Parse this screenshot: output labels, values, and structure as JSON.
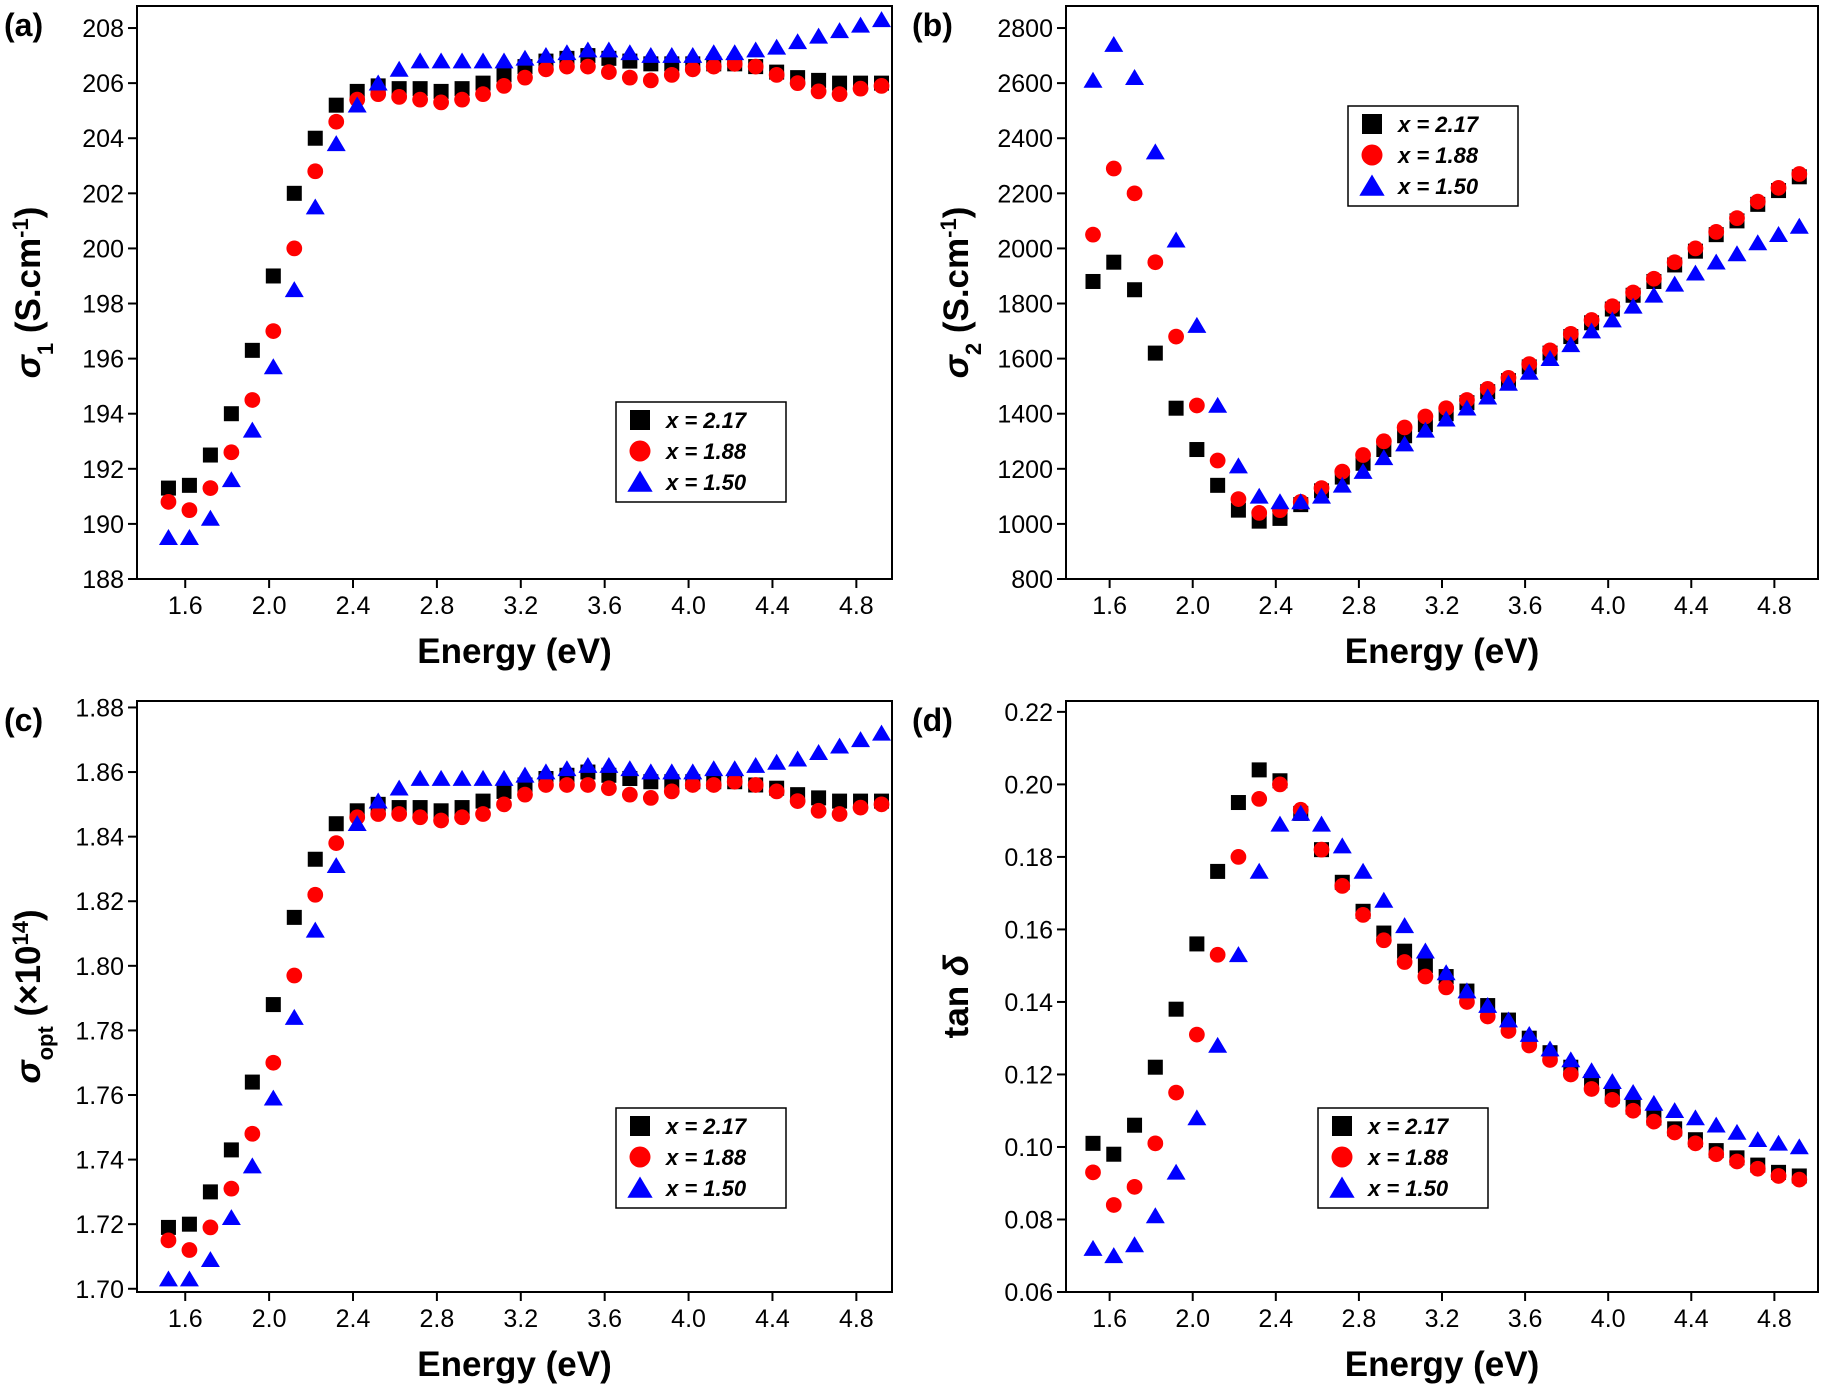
{
  "chart_data": [
    {
      "type": "scatter",
      "panel_label": "(a)",
      "xlabel": "Energy (eV)",
      "ylabel": [
        {
          "text": "σ",
          "kind": "italic"
        },
        {
          "text": "1",
          "kind": "sub"
        },
        {
          "text": " (S.cm",
          "kind": "normal"
        },
        {
          "text": "-1",
          "kind": "sup"
        },
        {
          "text": ")",
          "kind": "normal"
        }
      ],
      "x": [
        1.52,
        1.62,
        1.72,
        1.82,
        1.92,
        2.02,
        2.12,
        2.22,
        2.32,
        2.42,
        2.52,
        2.62,
        2.72,
        2.82,
        2.92,
        3.02,
        3.12,
        3.22,
        3.32,
        3.42,
        3.52,
        3.62,
        3.72,
        3.82,
        3.92,
        4.02,
        4.12,
        4.22,
        4.32,
        4.42,
        4.52,
        4.62,
        4.72,
        4.82,
        4.92
      ],
      "xlim": [
        1.37,
        4.97
      ],
      "ylim": [
        188,
        208.8
      ],
      "xticks": [
        1.6,
        {
          "value": 2,
          "label": "2.0"
        },
        2.4,
        2.8,
        3.2,
        3.6,
        {
          "value": 4,
          "label": "4.0"
        },
        4.4,
        4.8
      ],
      "yticks": [
        188,
        190,
        192,
        194,
        196,
        198,
        200,
        202,
        204,
        206,
        208
      ],
      "legend": "lower right",
      "series": [
        {
          "name": "x = 2.17",
          "color": "#000000",
          "marker": "square",
          "values": [
            191.3,
            191.4,
            192.5,
            194.0,
            196.3,
            199.0,
            202.0,
            204.0,
            205.2,
            205.7,
            205.9,
            205.8,
            205.8,
            205.7,
            205.8,
            206.0,
            206.3,
            206.6,
            206.8,
            206.9,
            207.0,
            206.9,
            206.8,
            206.7,
            206.7,
            206.7,
            206.7,
            206.7,
            206.6,
            206.4,
            206.2,
            206.1,
            206.0,
            206.0,
            206.0
          ]
        },
        {
          "name": "x = 1.88",
          "color": "#ff0000",
          "marker": "circle",
          "values": [
            190.8,
            190.5,
            191.3,
            192.6,
            194.5,
            197.0,
            200.0,
            202.8,
            204.6,
            205.4,
            205.6,
            205.5,
            205.4,
            205.3,
            205.4,
            205.6,
            205.9,
            206.2,
            206.5,
            206.6,
            206.6,
            206.4,
            206.2,
            206.1,
            206.3,
            206.5,
            206.6,
            206.7,
            206.6,
            206.3,
            206.0,
            205.7,
            205.6,
            205.8,
            205.9
          ]
        },
        {
          "name": "x = 1.50",
          "color": "#0000ff",
          "marker": "triangle",
          "values": [
            189.5,
            189.5,
            190.2,
            191.6,
            193.4,
            195.7,
            198.5,
            201.5,
            203.8,
            205.2,
            206.0,
            206.5,
            206.8,
            206.8,
            206.8,
            206.8,
            206.8,
            206.9,
            207.0,
            207.1,
            207.2,
            207.2,
            207.1,
            207.0,
            207.0,
            207.0,
            207.1,
            207.1,
            207.2,
            207.3,
            207.5,
            207.7,
            207.9,
            208.1,
            208.3
          ]
        }
      ]
    },
    {
      "type": "scatter",
      "panel_label": "(b)",
      "xlabel": "Energy (eV)",
      "ylabel": [
        {
          "text": "σ",
          "kind": "italic"
        },
        {
          "text": "2",
          "kind": "sub"
        },
        {
          "text": " (S.cm",
          "kind": "normal"
        },
        {
          "text": "-1",
          "kind": "sup"
        },
        {
          "text": ")",
          "kind": "normal"
        }
      ],
      "x": [
        1.52,
        1.62,
        1.72,
        1.82,
        1.92,
        2.02,
        2.12,
        2.22,
        2.32,
        2.42,
        2.52,
        2.62,
        2.72,
        2.82,
        2.92,
        3.02,
        3.12,
        3.22,
        3.32,
        3.42,
        3.52,
        3.62,
        3.72,
        3.82,
        3.92,
        4.02,
        4.12,
        4.22,
        4.32,
        4.42,
        4.52,
        4.62,
        4.72,
        4.82,
        4.92
      ],
      "xlim": [
        1.39,
        5.01
      ],
      "ylim": [
        800,
        2880
      ],
      "xticks": [
        1.6,
        {
          "value": 2,
          "label": "2.0"
        },
        2.4,
        2.8,
        3.2,
        3.6,
        {
          "value": 4,
          "label": "4.0"
        },
        4.4,
        4.8
      ],
      "yticks": [
        800,
        1000,
        1200,
        1400,
        1600,
        1800,
        2000,
        2200,
        2400,
        2600,
        2800
      ],
      "legend": "upper right",
      "series": [
        {
          "name": "x = 2.17",
          "color": "#000000",
          "marker": "square",
          "values": [
            1880,
            1950,
            1850,
            1620,
            1420,
            1270,
            1140,
            1050,
            1010,
            1020,
            1070,
            1120,
            1170,
            1220,
            1270,
            1320,
            1360,
            1400,
            1440,
            1480,
            1520,
            1570,
            1620,
            1680,
            1730,
            1780,
            1830,
            1880,
            1940,
            1990,
            2050,
            2100,
            2160,
            2210,
            2260
          ]
        },
        {
          "name": "x = 1.88",
          "color": "#ff0000",
          "marker": "circle",
          "values": [
            2050,
            2290,
            2200,
            1950,
            1680,
            1430,
            1230,
            1090,
            1040,
            1050,
            1080,
            1130,
            1190,
            1250,
            1300,
            1350,
            1390,
            1420,
            1450,
            1490,
            1530,
            1580,
            1630,
            1690,
            1740,
            1790,
            1840,
            1890,
            1950,
            2000,
            2060,
            2110,
            2170,
            2220,
            2270
          ]
        },
        {
          "name": "x = 1.50",
          "color": "#0000ff",
          "marker": "triangle",
          "values": [
            2610,
            2740,
            2620,
            2350,
            2030,
            1720,
            1430,
            1210,
            1100,
            1080,
            1080,
            1100,
            1140,
            1190,
            1240,
            1290,
            1340,
            1380,
            1420,
            1460,
            1510,
            1550,
            1600,
            1650,
            1700,
            1740,
            1790,
            1830,
            1870,
            1910,
            1950,
            1980,
            2020,
            2050,
            2080
          ]
        }
      ]
    },
    {
      "type": "scatter",
      "panel_label": "(c)",
      "xlabel": "Energy (eV)",
      "ylabel": [
        {
          "text": "σ",
          "kind": "italic"
        },
        {
          "text": "opt",
          "kind": "sub"
        },
        {
          "text": " (×10",
          "kind": "normal"
        },
        {
          "text": "14",
          "kind": "sup"
        },
        {
          "text": ")",
          "kind": "normal"
        }
      ],
      "x": [
        1.52,
        1.62,
        1.72,
        1.82,
        1.92,
        2.02,
        2.12,
        2.22,
        2.32,
        2.42,
        2.52,
        2.62,
        2.72,
        2.82,
        2.92,
        3.02,
        3.12,
        3.22,
        3.32,
        3.42,
        3.52,
        3.62,
        3.72,
        3.82,
        3.92,
        4.02,
        4.12,
        4.22,
        4.32,
        4.42,
        4.52,
        4.62,
        4.72,
        4.82,
        4.92
      ],
      "xlim": [
        1.37,
        4.97
      ],
      "ylim": [
        1.699,
        1.882
      ],
      "xticks": [
        1.6,
        {
          "value": 2,
          "label": "2.0"
        },
        2.4,
        2.8,
        3.2,
        3.6,
        {
          "value": 4,
          "label": "4.0"
        },
        4.4,
        4.8
      ],
      "yticks": [
        {
          "value": 1.7,
          "label": "1.70"
        },
        1.72,
        1.74,
        1.76,
        1.78,
        {
          "value": 1.8,
          "label": "1.80"
        },
        1.82,
        1.84,
        1.86,
        1.88
      ],
      "legend": "lower right",
      "series": [
        {
          "name": "x = 2.17",
          "color": "#000000",
          "marker": "square",
          "values": [
            1.719,
            1.72,
            1.73,
            1.743,
            1.764,
            1.788,
            1.815,
            1.833,
            1.844,
            1.848,
            1.85,
            1.849,
            1.849,
            1.848,
            1.849,
            1.851,
            1.854,
            1.856,
            1.858,
            1.859,
            1.86,
            1.859,
            1.858,
            1.857,
            1.857,
            1.857,
            1.857,
            1.857,
            1.856,
            1.855,
            1.853,
            1.852,
            1.851,
            1.851,
            1.851
          ]
        },
        {
          "name": "x = 1.88",
          "color": "#ff0000",
          "marker": "circle",
          "values": [
            1.715,
            1.712,
            1.719,
            1.731,
            1.748,
            1.77,
            1.797,
            1.822,
            1.838,
            1.846,
            1.847,
            1.847,
            1.846,
            1.845,
            1.846,
            1.847,
            1.85,
            1.853,
            1.856,
            1.856,
            1.856,
            1.855,
            1.853,
            1.852,
            1.854,
            1.856,
            1.856,
            1.857,
            1.856,
            1.854,
            1.851,
            1.848,
            1.847,
            1.849,
            1.85
          ]
        },
        {
          "name": "x = 1.50",
          "color": "#0000ff",
          "marker": "triangle",
          "values": [
            1.703,
            1.703,
            1.709,
            1.722,
            1.738,
            1.759,
            1.784,
            1.811,
            1.831,
            1.844,
            1.851,
            1.855,
            1.858,
            1.858,
            1.858,
            1.858,
            1.858,
            1.859,
            1.86,
            1.861,
            1.862,
            1.862,
            1.861,
            1.86,
            1.86,
            1.86,
            1.861,
            1.861,
            1.862,
            1.863,
            1.864,
            1.866,
            1.868,
            1.87,
            1.872
          ]
        }
      ]
    },
    {
      "type": "scatter",
      "panel_label": "(d)",
      "xlabel": "Energy (eV)",
      "ylabel": [
        {
          "text": "tan ",
          "kind": "normal"
        },
        {
          "text": "δ",
          "kind": "italic"
        }
      ],
      "x": [
        1.52,
        1.62,
        1.72,
        1.82,
        1.92,
        2.02,
        2.12,
        2.22,
        2.32,
        2.42,
        2.52,
        2.62,
        2.72,
        2.82,
        2.92,
        3.02,
        3.12,
        3.22,
        3.32,
        3.42,
        3.52,
        3.62,
        3.72,
        3.82,
        3.92,
        4.02,
        4.12,
        4.22,
        4.32,
        4.42,
        4.52,
        4.62,
        4.72,
        4.82,
        4.92
      ],
      "xlim": [
        1.39,
        5.01
      ],
      "ylim": [
        0.06,
        0.223
      ],
      "xticks": [
        1.6,
        {
          "value": 2,
          "label": "2.0"
        },
        2.4,
        2.8,
        3.2,
        3.6,
        {
          "value": 4,
          "label": "4.0"
        },
        4.4,
        4.8
      ],
      "yticks": [
        0.06,
        0.08,
        {
          "value": 0.1,
          "label": "0.10"
        },
        0.12,
        0.14,
        0.16,
        0.18,
        {
          "value": 0.2,
          "label": "0.20"
        },
        0.22
      ],
      "legend": "lower right",
      "series": [
        {
          "name": "x = 2.17",
          "color": "#000000",
          "marker": "square",
          "values": [
            0.101,
            0.098,
            0.106,
            0.122,
            0.138,
            0.156,
            0.176,
            0.195,
            0.204,
            0.201,
            0.192,
            0.182,
            0.173,
            0.165,
            0.159,
            0.154,
            0.15,
            0.147,
            0.143,
            0.139,
            0.135,
            0.13,
            0.126,
            0.122,
            0.118,
            0.114,
            0.111,
            0.108,
            0.105,
            0.102,
            0.099,
            0.097,
            0.095,
            0.093,
            0.092
          ]
        },
        {
          "name": "x = 1.88",
          "color": "#ff0000",
          "marker": "circle",
          "values": [
            0.093,
            0.084,
            0.089,
            0.101,
            0.115,
            0.131,
            0.153,
            0.18,
            0.196,
            0.2,
            0.193,
            0.182,
            0.172,
            0.164,
            0.157,
            0.151,
            0.147,
            0.144,
            0.14,
            0.136,
            0.132,
            0.128,
            0.124,
            0.12,
            0.116,
            0.113,
            0.11,
            0.107,
            0.104,
            0.101,
            0.098,
            0.096,
            0.094,
            0.092,
            0.091
          ]
        },
        {
          "name": "x = 1.50",
          "color": "#0000ff",
          "marker": "triangle",
          "values": [
            0.072,
            0.07,
            0.073,
            0.081,
            0.093,
            0.108,
            0.128,
            0.153,
            0.176,
            0.189,
            0.192,
            0.189,
            0.183,
            0.176,
            0.168,
            0.161,
            0.154,
            0.148,
            0.143,
            0.139,
            0.135,
            0.131,
            0.127,
            0.124,
            0.121,
            0.118,
            0.115,
            0.112,
            0.11,
            0.108,
            0.106,
            0.104,
            0.102,
            0.101,
            0.1
          ]
        }
      ]
    }
  ]
}
